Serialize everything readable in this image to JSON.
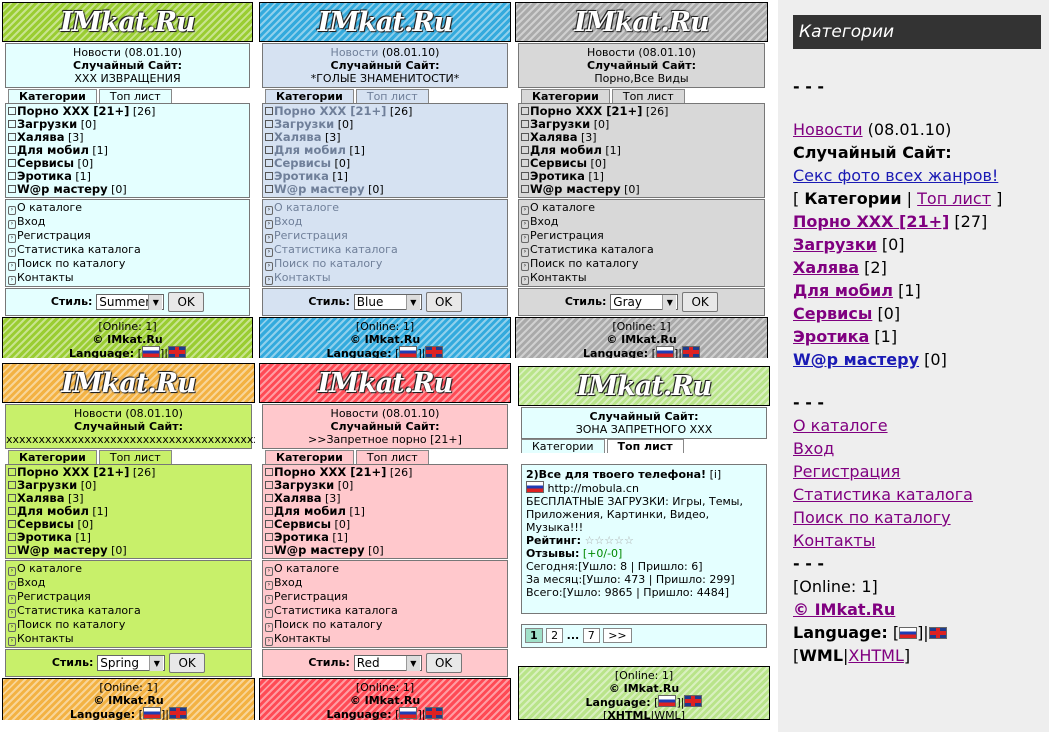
{
  "logo_text": "IMkat.Ru",
  "panels": {
    "summer": {
      "news_label": "Новости",
      "news_date": "(08.01.10)",
      "random_label": "Случайный Сайт:",
      "random_site": "XXX ИЗВРАЩЕНИЯ",
      "style_value": "Summer"
    },
    "blue": {
      "news_label": "Новости",
      "news_date": "(08.01.10)",
      "random_label": "Случайный Сайт:",
      "random_site": "*ГОЛЫЕ ЗНАМЕНИТОСТИ*",
      "style_value": "Blue"
    },
    "gray": {
      "news_label": "Новости",
      "news_date": "(08.01.10)",
      "random_label": "Случайный Сайт:",
      "random_site": "Порно,Все Виды",
      "style_value": "Gray"
    },
    "spring": {
      "news_label": "Новости",
      "news_date": "(08.01.10)",
      "random_label": "Случайный Сайт:",
      "random_site": "xxxxxxxxxxxxxxxxxxxxxxxxxxxxxxxxxxxxxxxxxxx",
      "style_value": "Spring"
    },
    "red": {
      "news_label": "Новости",
      "news_date": "(08.01.10)",
      "random_label": "Случайный Сайт:",
      "random_site": ">>Запретное порно [21+]",
      "style_value": "Red"
    }
  },
  "tabs": {
    "categories": "Категории",
    "toplist": "Топ лист"
  },
  "categories": [
    {
      "name": "Порно XXX [21+]",
      "count": "[26]"
    },
    {
      "name": "Загрузки",
      "count": "[0]"
    },
    {
      "name": "Халява",
      "count": "[3]"
    },
    {
      "name": "Для мобил",
      "count": "[1]"
    },
    {
      "name": "Сервисы",
      "count": "[0]"
    },
    {
      "name": "Эротика",
      "count": "[1]"
    },
    {
      "name": "W@p мастеру",
      "count": "[0]"
    }
  ],
  "links": [
    "О каталоге",
    "Вход",
    "Регистрация",
    "Статистика каталога",
    "Поиск по каталогу",
    "Контакты"
  ],
  "style_label": "Стиль:",
  "ok_label": "OK",
  "footer": {
    "online": "[Online: 1]",
    "copyright": "© IMkat.Ru",
    "language": "Language:",
    "xhtml": "XHTML",
    "wml": "WML"
  },
  "green_panel": {
    "random_label": "Случайный Сайт:",
    "random_site": "ЗОНА ЗАПРЕТНОГО XXX",
    "entry_title": "2)Все для твоего телефона!",
    "entry_info": "[i]",
    "entry_url": "http://mobula.cn",
    "entry_desc": "БЕСПЛАТНЫЕ ЗАГРУЗКИ: Игры, Темы, Приложения, Картинки, Видео, Музыка!!!",
    "rating_label": "Рейтинг:",
    "rating_stars": "☆☆☆☆☆",
    "reviews_label": "Отзывы:",
    "reviews_value": "[+0/-0]",
    "today": "Сегодня:[Ушло: 8 | Пришло: 6]",
    "month": "За месяц:[Ушло: 473 | Пришло: 299]",
    "total": "Всего:[Ушло: 9865 | Пришло: 4484]",
    "pages": [
      "1",
      "2",
      "...",
      "7",
      ">>"
    ]
  },
  "sidebar": {
    "title": "Категории",
    "sep1": "- - -",
    "news_label": "Новости",
    "news_date": "(08.01.10)",
    "random_label": "Случайный Сайт:",
    "random_site": "Секс фото всех жанров!",
    "tab_open": "[",
    "tab_categories": "Категории",
    "tab_sep": "|",
    "tab_toplist": "Топ лист",
    "tab_close": "]",
    "categories": [
      {
        "name": "Порно XXX [21+]",
        "count": "[27]"
      },
      {
        "name": "Загрузки",
        "count": "[0]"
      },
      {
        "name": "Халява",
        "count": "[2]"
      },
      {
        "name": "Для мобил",
        "count": "[1]"
      },
      {
        "name": "Сервисы",
        "count": "[0]"
      },
      {
        "name": "Эротика",
        "count": "[1]"
      },
      {
        "name": "W@p мастеру",
        "count": "[0]"
      }
    ],
    "sep2": "- - -",
    "links": [
      "О каталоге",
      "Вход",
      "Регистрация",
      "Статистика каталога",
      "Поиск по каталогу",
      "Контакты"
    ],
    "sep3": "- - -",
    "online": "[Online: 1]",
    "copyright": "© IMkat.Ru",
    "language": "Language:",
    "wml": "WML",
    "xhtml": "XHTML"
  }
}
